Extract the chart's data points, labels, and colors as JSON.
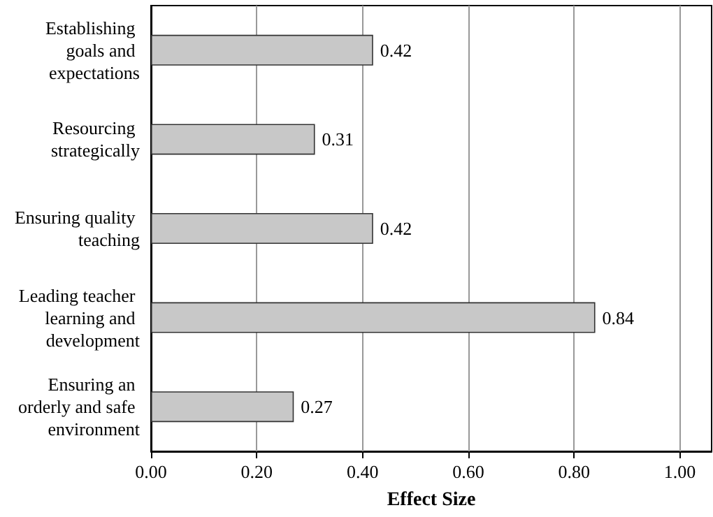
{
  "chart_data": {
    "type": "bar",
    "orientation": "horizontal",
    "xlabel": "Effect Size",
    "categories": [
      "Establishing goals and expectations",
      "Resourcing strategically",
      "Ensuring quality teaching",
      "Leading teacher learning and development",
      "Ensuring an orderly and safe environment"
    ],
    "values": [
      0.42,
      0.31,
      0.42,
      0.84,
      0.27
    ],
    "color": "#c8c8c8",
    "data_labels": true,
    "xlim": [
      0,
      1.06
    ],
    "xticks": [
      {
        "value": 0,
        "label": "0.00"
      },
      {
        "value": 0.2,
        "label": "0.20"
      },
      {
        "value": 0.4,
        "label": "0.40"
      },
      {
        "value": 0.6,
        "label": "0.60"
      },
      {
        "value": 0.8,
        "label": "0.80"
      },
      {
        "value": 1,
        "label": "1.00"
      }
    ],
    "grid": "x"
  }
}
